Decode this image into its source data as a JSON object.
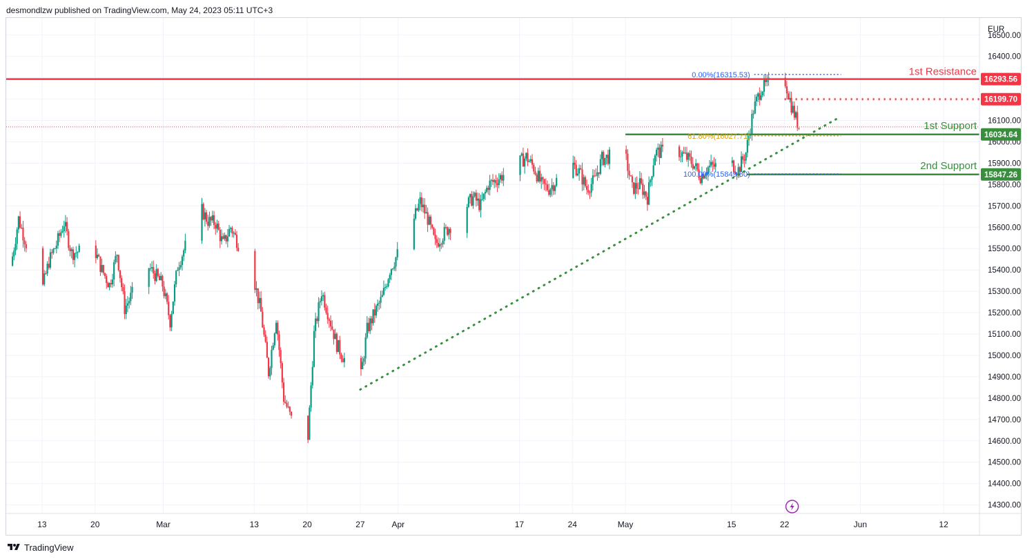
{
  "header": {
    "text": "desmondlzw published on TradingView.com, May 24, 2023 05:11 UTC+3"
  },
  "footer": {
    "brand": "TradingView"
  },
  "chart_data": {
    "type": "candlestick",
    "currency": "EUR",
    "ylim": [
      14260,
      16580
    ],
    "price_ticks": [
      14300,
      14400,
      14500,
      14600,
      14700,
      14800,
      14900,
      15000,
      15100,
      15200,
      15300,
      15400,
      15500,
      15600,
      15700,
      15800,
      15900,
      16000,
      16100,
      16200,
      16300,
      16400,
      16500
    ],
    "price_tick_labels": [
      "14300.00",
      "14400.00",
      "14500.00",
      "14600.00",
      "14700.00",
      "14800.00",
      "14900.00",
      "15000.00",
      "15100.00",
      "15200.00",
      "15300.00",
      "15400.00",
      "15500.00",
      "15600.00",
      "15700.00",
      "15800.00",
      "15900.00",
      "16000.00",
      "16100.00",
      "16200.00",
      "16300.00",
      "16400.00",
      "16500.00"
    ],
    "date_labels": [
      {
        "label": "13",
        "date": "2023-02-13"
      },
      {
        "label": "20",
        "date": "2023-02-20"
      },
      {
        "label": "Mar",
        "date": "2023-03-01"
      },
      {
        "label": "13",
        "date": "2023-03-13"
      },
      {
        "label": "20",
        "date": "2023-03-20"
      },
      {
        "label": "27",
        "date": "2023-03-27"
      },
      {
        "label": "Apr",
        "date": "2023-04-01"
      },
      {
        "label": "17",
        "date": "2023-04-17"
      },
      {
        "label": "24",
        "date": "2023-04-24"
      },
      {
        "label": "May",
        "date": "2023-05-01"
      },
      {
        "label": "15",
        "date": "2023-05-15"
      },
      {
        "label": "22",
        "date": "2023-05-22"
      },
      {
        "label": "Jun",
        "date": "2023-06-01"
      },
      {
        "label": "12",
        "date": "2023-06-12"
      }
    ],
    "x_range": [
      "2023-02-09",
      "2023-06-16"
    ],
    "price_path": [
      [
        "2023-02-09",
        15420
      ],
      [
        "2023-02-10",
        15640
      ],
      [
        "2023-02-13",
        15290
      ],
      [
        "2023-02-14",
        15440
      ],
      [
        "2023-02-15",
        15520
      ],
      [
        "2023-02-16",
        15620
      ],
      [
        "2023-02-17",
        15480
      ],
      [
        "2023-02-20",
        15500
      ],
      [
        "2023-02-21",
        15400
      ],
      [
        "2023-02-22",
        15330
      ],
      [
        "2023-02-23",
        15480
      ],
      [
        "2023-02-24",
        15220
      ],
      [
        "2023-02-27",
        15420
      ],
      [
        "2023-02-28",
        15380
      ],
      [
        "2023-03-01",
        15330
      ],
      [
        "2023-03-02",
        15160
      ],
      [
        "2023-03-03",
        15420
      ],
      [
        "2023-03-06",
        15690
      ],
      [
        "2023-03-07",
        15630
      ],
      [
        "2023-03-08",
        15620
      ],
      [
        "2023-03-09",
        15520
      ],
      [
        "2023-03-10",
        15600
      ],
      [
        "2023-03-13",
        15370
      ],
      [
        "2023-03-14",
        15200
      ],
      [
        "2023-03-15",
        14920
      ],
      [
        "2023-03-16",
        15180
      ],
      [
        "2023-03-17",
        14800
      ],
      [
        "2023-03-20",
        14500
      ],
      [
        "2023-03-21",
        15100
      ],
      [
        "2023-03-22",
        15300
      ],
      [
        "2023-03-23",
        15180
      ],
      [
        "2023-03-24",
        15050
      ],
      [
        "2023-03-27",
        14850
      ],
      [
        "2023-03-28",
        15120
      ],
      [
        "2023-03-29",
        15200
      ],
      [
        "2023-03-30",
        15270
      ],
      [
        "2023-03-31",
        15400
      ],
      [
        "2023-04-03",
        15620
      ],
      [
        "2023-04-04",
        15720
      ],
      [
        "2023-04-05",
        15640
      ],
      [
        "2023-04-06",
        15520
      ],
      [
        "2023-04-11",
        15740
      ],
      [
        "2023-04-12",
        15700
      ],
      [
        "2023-04-13",
        15800
      ],
      [
        "2023-04-14",
        15820
      ],
      [
        "2023-04-17",
        15900
      ],
      [
        "2023-04-18",
        15930
      ],
      [
        "2023-04-19",
        15880
      ],
      [
        "2023-04-20",
        15800
      ],
      [
        "2023-04-21",
        15780
      ],
      [
        "2023-04-24",
        15900
      ],
      [
        "2023-04-25",
        15860
      ],
      [
        "2023-04-26",
        15780
      ],
      [
        "2023-04-27",
        15820
      ],
      [
        "2023-04-28",
        15920
      ],
      [
        "2023-05-01",
        15950
      ],
      [
        "2023-05-02",
        15780
      ],
      [
        "2023-05-03",
        15800
      ],
      [
        "2023-05-04",
        15740
      ],
      [
        "2023-05-05",
        15950
      ],
      [
        "2023-05-08",
        15960
      ],
      [
        "2023-05-09",
        15930
      ],
      [
        "2023-05-10",
        15900
      ],
      [
        "2023-05-11",
        15840
      ],
      [
        "2023-05-12",
        15880
      ],
      [
        "2023-05-15",
        15900
      ],
      [
        "2023-05-16",
        15870
      ],
      [
        "2023-05-17",
        15950
      ],
      [
        "2023-05-18",
        16150
      ],
      [
        "2023-05-19",
        16250
      ],
      [
        "2023-05-22",
        16310
      ],
      [
        "2023-05-23",
        16170
      ],
      [
        "2023-05-24",
        16070
      ]
    ],
    "current_price_line": 16070,
    "levels": [
      {
        "name": "1st Resistance",
        "price": 16293.56,
        "label": "16293.56",
        "color": "#f23645"
      },
      {
        "name": "",
        "price": 16199.7,
        "label": "16199.70",
        "color": "#f23645"
      },
      {
        "name": "1st Support",
        "price": 16034.64,
        "label": "16034.64",
        "color": "#388e3c"
      },
      {
        "name": "2nd Support",
        "price": 15847.26,
        "label": "15847.26",
        "color": "#388e3c"
      }
    ],
    "fibonacci": [
      {
        "label": "0.00%(16315.53)",
        "price": 16315.53,
        "color": "#2962ff"
      },
      {
        "label": "61.80%(16027.71)",
        "price": 16027.71,
        "color": "#d4a017"
      },
      {
        "label": "100.00%(15849.80)",
        "price": 15849.8,
        "color": "#2962ff"
      }
    ],
    "trendline": {
      "from": [
        "2023-03-27",
        14840
      ],
      "to": [
        "2023-05-29",
        16110
      ],
      "color": "#388e3c",
      "style": "dotted"
    },
    "annotations": {
      "resistance_label": "1st Resistance",
      "support1_label": "1st Support",
      "support2_label": "2nd Support"
    },
    "colors": {
      "up": "#089981",
      "down": "#f23645",
      "grid": "#f0f3fa",
      "axis_text": "#131722"
    }
  }
}
